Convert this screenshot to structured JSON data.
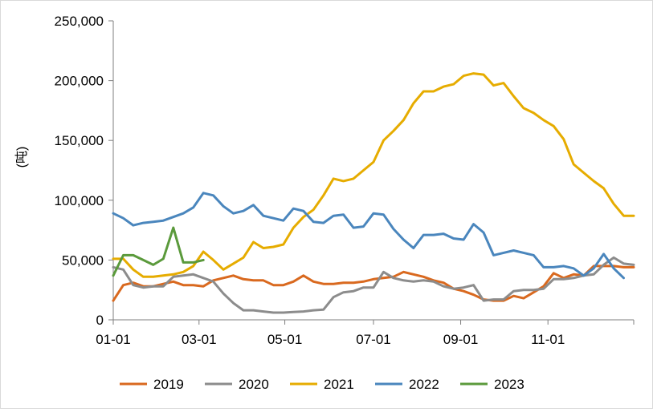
{
  "chart_data": {
    "type": "line",
    "ylabel": "(吨)",
    "ylim": [
      0,
      250000
    ],
    "yticks": [
      0,
      50000,
      100000,
      150000,
      200000,
      250000
    ],
    "ytick_labels": [
      "0",
      "50,000",
      "100,000",
      "150,000",
      "200,000",
      "250,000"
    ],
    "x_domain_weeks": [
      0,
      52
    ],
    "xticks": [
      0,
      8.57,
      17.14,
      26,
      34.71,
      43.43
    ],
    "xtick_labels": [
      "01-01",
      "03-01",
      "05-01",
      "07-01",
      "09-01",
      "11-01"
    ],
    "grid": false,
    "legend_position": "bottom",
    "series": [
      {
        "name": "2019",
        "color": "#d9691f",
        "x": [
          0,
          1,
          2,
          3,
          4,
          5,
          6,
          7,
          8,
          9,
          10,
          11,
          12,
          13,
          14,
          15,
          16,
          17,
          18,
          19,
          20,
          21,
          22,
          23,
          24,
          25,
          26,
          27,
          28,
          29,
          30,
          31,
          32,
          33,
          34,
          35,
          36,
          37,
          38,
          39,
          40,
          41,
          42,
          43,
          44,
          45,
          46,
          47,
          48,
          49,
          50,
          51,
          52
        ],
        "values": [
          16000,
          29000,
          31000,
          28000,
          28000,
          30000,
          32000,
          29000,
          29000,
          28000,
          33000,
          35000,
          37000,
          34000,
          33000,
          33000,
          29000,
          29000,
          32000,
          37000,
          32000,
          30000,
          30000,
          31000,
          31000,
          32000,
          34000,
          35000,
          36000,
          40000,
          38000,
          36000,
          33000,
          31000,
          26000,
          24000,
          21000,
          17000,
          16000,
          16000,
          20000,
          18000,
          23000,
          28000,
          39000,
          35000,
          38000,
          37000,
          45000,
          45000,
          45000,
          44000,
          44000
        ]
      },
      {
        "name": "2020",
        "color": "#8c8c8c",
        "x": [
          0,
          1,
          2,
          3,
          4,
          5,
          6,
          7,
          8,
          9,
          10,
          11,
          12,
          13,
          14,
          15,
          16,
          17,
          18,
          19,
          20,
          21,
          22,
          23,
          24,
          25,
          26,
          27,
          28,
          29,
          30,
          31,
          32,
          33,
          34,
          35,
          36,
          37,
          38,
          39,
          40,
          41,
          42,
          43,
          44,
          45,
          46,
          47,
          48,
          49,
          50,
          51,
          52
        ],
        "values": [
          44000,
          42000,
          29000,
          27000,
          28000,
          28000,
          36000,
          37000,
          38000,
          35000,
          32000,
          22000,
          14000,
          8000,
          8000,
          7000,
          6000,
          6000,
          6500,
          7000,
          8000,
          8500,
          19000,
          23000,
          24000,
          27000,
          27000,
          40000,
          35000,
          33000,
          32000,
          33000,
          32000,
          28000,
          26000,
          27000,
          29000,
          16000,
          17000,
          17000,
          24000,
          25000,
          25000,
          26000,
          34000,
          34000,
          35000,
          37000,
          38000,
          46000,
          52000,
          47000,
          46000
        ]
      },
      {
        "name": "2021",
        "color": "#e6ac00",
        "x": [
          0,
          1,
          2,
          3,
          4,
          5,
          6,
          7,
          8,
          9,
          10,
          11,
          12,
          13,
          14,
          15,
          16,
          17,
          18,
          19,
          20,
          21,
          22,
          23,
          24,
          25,
          26,
          27,
          28,
          29,
          30,
          31,
          32,
          33,
          34,
          35,
          36,
          37,
          38,
          39,
          40,
          41,
          42,
          43,
          44,
          45,
          46,
          47,
          48,
          49,
          50,
          51,
          52
        ],
        "values": [
          51000,
          51000,
          42000,
          36000,
          36000,
          37000,
          38000,
          40000,
          45000,
          57000,
          50000,
          42000,
          47000,
          52000,
          65000,
          60000,
          61000,
          63000,
          77000,
          86000,
          92000,
          104000,
          118000,
          116000,
          118000,
          125000,
          132000,
          150000,
          158000,
          167000,
          181000,
          191000,
          191000,
          195000,
          197000,
          204000,
          206000,
          205000,
          196000,
          198000,
          187000,
          177000,
          173000,
          167000,
          162000,
          151000,
          130000,
          123000,
          116000,
          110000,
          97000,
          87000,
          87000
        ]
      },
      {
        "name": "2022",
        "color": "#4a86bd",
        "x": [
          0,
          1,
          2,
          3,
          4,
          5,
          6,
          7,
          8,
          9,
          10,
          11,
          12,
          13,
          14,
          15,
          16,
          17,
          18,
          19,
          20,
          21,
          22,
          23,
          24,
          25,
          26,
          27,
          28,
          29,
          30,
          31,
          32,
          33,
          34,
          35,
          36,
          37,
          38,
          39,
          40,
          41,
          42,
          43,
          44,
          45,
          46,
          47,
          48,
          49,
          50,
          51
        ],
        "values": [
          89000,
          85000,
          79000,
          81000,
          82000,
          83000,
          86000,
          89000,
          94000,
          106000,
          104000,
          95000,
          89000,
          91000,
          96000,
          87000,
          85000,
          83000,
          93000,
          91000,
          82000,
          81000,
          87000,
          88000,
          77000,
          78000,
          89000,
          88000,
          76000,
          67000,
          60000,
          71000,
          71000,
          72000,
          68000,
          67000,
          80000,
          73000,
          54000,
          56000,
          58000,
          56000,
          54000,
          44000,
          44000,
          45000,
          43000,
          37000,
          43000,
          55000,
          43000,
          35000
        ]
      },
      {
        "name": "2023",
        "color": "#5b9a3c",
        "x": [
          0,
          1,
          2,
          3,
          4,
          5,
          6,
          7,
          8,
          9
        ],
        "values": [
          37000,
          54000,
          54000,
          50000,
          46000,
          51000,
          77000,
          48000,
          48000,
          50000
        ]
      }
    ]
  }
}
